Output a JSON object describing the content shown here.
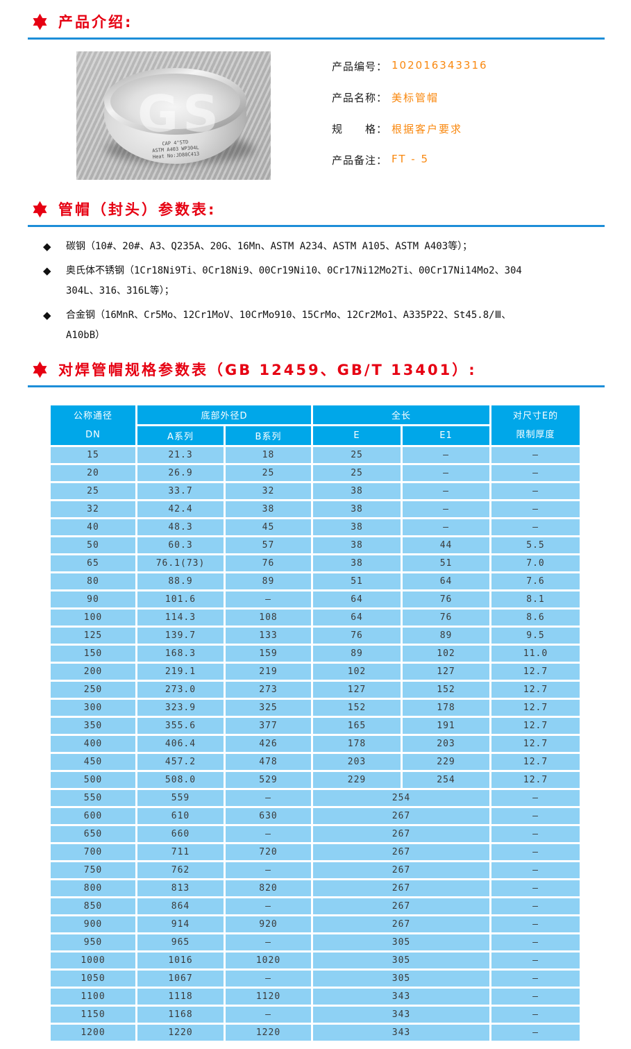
{
  "colors": {
    "accent_red": "#e60012",
    "divider_blue": "#1d8ed8",
    "value_orange": "#f9880f",
    "table_header_bg": "#00a7e9",
    "table_row_bg": "#8ed1f4"
  },
  "sections": {
    "intro_title": "产品介绍:",
    "params_title": "管帽（封头）参数表:",
    "specs_title": "对焊管帽规格参数表（GB 12459、GB/T 13401）:"
  },
  "product": {
    "photo": {
      "watermark": "GS",
      "stamp": "CAP 4\"STD\nASTM A403 WP304L\nHeat No:JD80C413"
    },
    "fields": [
      {
        "label": "产品编号：",
        "value": "102016343316"
      },
      {
        "label": "产品名称：",
        "value": "美标管帽"
      },
      {
        "label": "规　　格：",
        "value": "根据客户要求"
      },
      {
        "label": "产品备注：",
        "value": "FT - 5"
      }
    ]
  },
  "materials": [
    {
      "text": "碳钢（10#、20#、A3、Q235A、20G、16Mn、ASTM A234、ASTM A105、ASTM A403等）；"
    },
    {
      "text": "奥氏体不锈钢（1Cr18Ni9Ti、0Cr18Ni9、00Cr19Ni10、0Cr17Ni12Mo2Ti、00Cr17Ni14Mo2、304\n304L、316、316L等）；"
    },
    {
      "text": "合金钢（16MnR、Cr5Mo、12Cr1MoV、10CrMo910、15CrMo、12Cr2Mo1、A335P22、St45.8/Ⅲ、\nA10bB）"
    }
  ],
  "spec_table": {
    "header": {
      "dn_line1": "公称通径",
      "dn_line2": "DN",
      "d_group": "底部外径D",
      "a_series": "A系列",
      "b_series": "B系列",
      "len_group": "全长",
      "e": "E",
      "e1": "E1",
      "limit_line1": "对尺寸E的",
      "limit_line2": "限制厚度"
    },
    "rows": [
      {
        "dn": "15",
        "a": "21.3",
        "b": "18",
        "e": "25",
        "e1": "–",
        "t": "–",
        "merged": false
      },
      {
        "dn": "20",
        "a": "26.9",
        "b": "25",
        "e": "25",
        "e1": "–",
        "t": "–",
        "merged": false
      },
      {
        "dn": "25",
        "a": "33.7",
        "b": "32",
        "e": "38",
        "e1": "–",
        "t": "–",
        "merged": false
      },
      {
        "dn": "32",
        "a": "42.4",
        "b": "38",
        "e": "38",
        "e1": "–",
        "t": "–",
        "merged": false
      },
      {
        "dn": "40",
        "a": "48.3",
        "b": "45",
        "e": "38",
        "e1": "–",
        "t": "–",
        "merged": false
      },
      {
        "dn": "50",
        "a": "60.3",
        "b": "57",
        "e": "38",
        "e1": "44",
        "t": "5.5",
        "merged": false
      },
      {
        "dn": "65",
        "a": "76.1(73)",
        "b": "76",
        "e": "38",
        "e1": "51",
        "t": "7.0",
        "merged": false
      },
      {
        "dn": "80",
        "a": "88.9",
        "b": "89",
        "e": "51",
        "e1": "64",
        "t": "7.6",
        "merged": false
      },
      {
        "dn": "90",
        "a": "101.6",
        "b": "–",
        "e": "64",
        "e1": "76",
        "t": "8.1",
        "merged": false
      },
      {
        "dn": "100",
        "a": "114.3",
        "b": "108",
        "e": "64",
        "e1": "76",
        "t": "8.6",
        "merged": false
      },
      {
        "dn": "125",
        "a": "139.7",
        "b": "133",
        "e": "76",
        "e1": "89",
        "t": "9.5",
        "merged": false
      },
      {
        "dn": "150",
        "a": "168.3",
        "b": "159",
        "e": "89",
        "e1": "102",
        "t": "11.0",
        "merged": false
      },
      {
        "dn": "200",
        "a": "219.1",
        "b": "219",
        "e": "102",
        "e1": "127",
        "t": "12.7",
        "merged": false
      },
      {
        "dn": "250",
        "a": "273.0",
        "b": "273",
        "e": "127",
        "e1": "152",
        "t": "12.7",
        "merged": false
      },
      {
        "dn": "300",
        "a": "323.9",
        "b": "325",
        "e": "152",
        "e1": "178",
        "t": "12.7",
        "merged": false
      },
      {
        "dn": "350",
        "a": "355.6",
        "b": "377",
        "e": "165",
        "e1": "191",
        "t": "12.7",
        "merged": false
      },
      {
        "dn": "400",
        "a": "406.4",
        "b": "426",
        "e": "178",
        "e1": "203",
        "t": "12.7",
        "merged": false
      },
      {
        "dn": "450",
        "a": "457.2",
        "b": "478",
        "e": "203",
        "e1": "229",
        "t": "12.7",
        "merged": false
      },
      {
        "dn": "500",
        "a": "508.0",
        "b": "529",
        "e": "229",
        "e1": "254",
        "t": "12.7",
        "merged": false
      },
      {
        "dn": "550",
        "a": "559",
        "b": "–",
        "e": "254",
        "t": "–",
        "merged": true
      },
      {
        "dn": "600",
        "a": "610",
        "b": "630",
        "e": "267",
        "t": "–",
        "merged": true
      },
      {
        "dn": "650",
        "a": "660",
        "b": "–",
        "e": "267",
        "t": "–",
        "merged": true
      },
      {
        "dn": "700",
        "a": "711",
        "b": "720",
        "e": "267",
        "t": "–",
        "merged": true
      },
      {
        "dn": "750",
        "a": "762",
        "b": "–",
        "e": "267",
        "t": "–",
        "merged": true
      },
      {
        "dn": "800",
        "a": "813",
        "b": "820",
        "e": "267",
        "t": "–",
        "merged": true
      },
      {
        "dn": "850",
        "a": "864",
        "b": "–",
        "e": "267",
        "t": "–",
        "merged": true
      },
      {
        "dn": "900",
        "a": "914",
        "b": "920",
        "e": "267",
        "t": "–",
        "merged": true
      },
      {
        "dn": "950",
        "a": "965",
        "b": "–",
        "e": "305",
        "t": "–",
        "merged": true
      },
      {
        "dn": "1000",
        "a": "1016",
        "b": "1020",
        "e": "305",
        "t": "–",
        "merged": true
      },
      {
        "dn": "1050",
        "a": "1067",
        "b": "–",
        "e": "305",
        "t": "–",
        "merged": true
      },
      {
        "dn": "1100",
        "a": "1118",
        "b": "1120",
        "e": "343",
        "t": "–",
        "merged": true
      },
      {
        "dn": "1150",
        "a": "1168",
        "b": "–",
        "e": "343",
        "t": "–",
        "merged": true
      },
      {
        "dn": "1200",
        "a": "1220",
        "b": "1220",
        "e": "343",
        "t": "–",
        "merged": true
      }
    ]
  }
}
